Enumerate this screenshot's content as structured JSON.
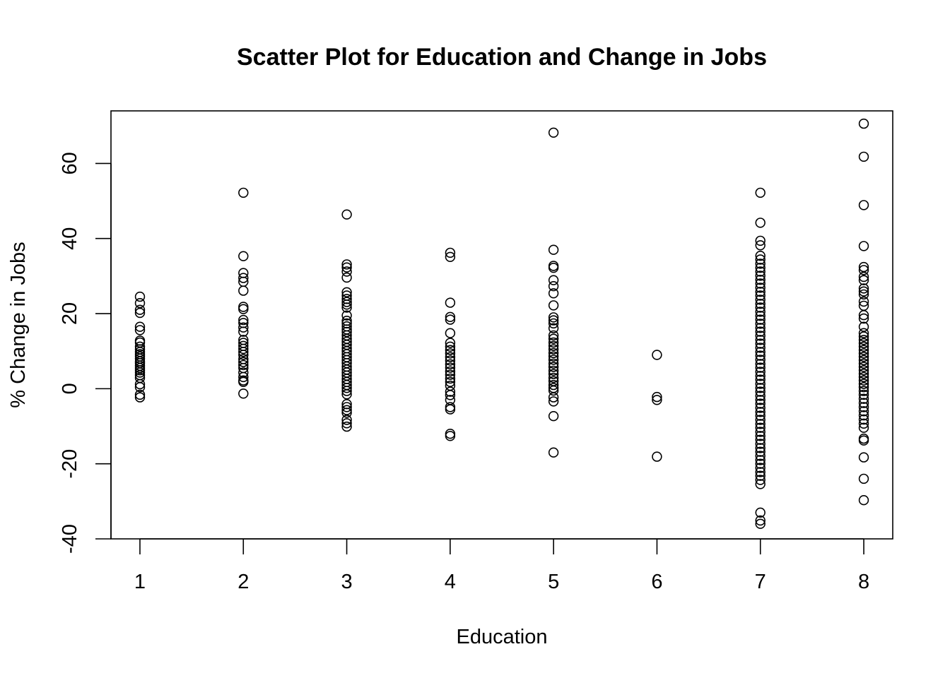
{
  "chart_data": {
    "type": "scatter",
    "title": "Scatter Plot for Education and Change in Jobs",
    "xlabel": "Education",
    "ylabel": "% Change in Jobs",
    "xlim": [
      0.72,
      8.28
    ],
    "ylim": [
      -40,
      74
    ],
    "x_ticks": [
      1,
      2,
      3,
      4,
      5,
      6,
      7,
      8
    ],
    "y_ticks": [
      -40,
      -20,
      0,
      20,
      40,
      60
    ],
    "grid": false,
    "legend": "none",
    "marker": "open-circle",
    "color": "#000000",
    "series": [
      {
        "points": [
          [
            1,
            24.5
          ],
          [
            1,
            22.8
          ],
          [
            1,
            21
          ],
          [
            1,
            20.2
          ],
          [
            1,
            16.5
          ],
          [
            1,
            15.6
          ],
          [
            1,
            12.8
          ],
          [
            1,
            12.3
          ],
          [
            1,
            11.2
          ],
          [
            1,
            10.5
          ],
          [
            1,
            9.8
          ],
          [
            1,
            9.2
          ],
          [
            1,
            8.6
          ],
          [
            1,
            8
          ],
          [
            1,
            7.3
          ],
          [
            1,
            6.8
          ],
          [
            1,
            6.1
          ],
          [
            1,
            5.5
          ],
          [
            1,
            4.9
          ],
          [
            1,
            4.3
          ],
          [
            1,
            3.6
          ],
          [
            1,
            2.9
          ],
          [
            1,
            1.2
          ],
          [
            1,
            0.4
          ],
          [
            1,
            -1.6
          ],
          [
            1,
            -2.3
          ],
          [
            2,
            52.2
          ],
          [
            2,
            35.3
          ],
          [
            2,
            30.8
          ],
          [
            2,
            29.5
          ],
          [
            2,
            28.5
          ],
          [
            2,
            26.1
          ],
          [
            2,
            21.8
          ],
          [
            2,
            21.2
          ],
          [
            2,
            18.3
          ],
          [
            2,
            17.5
          ],
          [
            2,
            16.3
          ],
          [
            2,
            15.2
          ],
          [
            2,
            13
          ],
          [
            2,
            12.2
          ],
          [
            2,
            11.4
          ],
          [
            2,
            10.6
          ],
          [
            2,
            9.8
          ],
          [
            2,
            9
          ],
          [
            2,
            7.9
          ],
          [
            2,
            7.1
          ],
          [
            2,
            6.3
          ],
          [
            2,
            5.5
          ],
          [
            2,
            4.3
          ],
          [
            2,
            3.1
          ],
          [
            2,
            2.2
          ],
          [
            2,
            1.8
          ],
          [
            2,
            -1.3
          ],
          [
            3,
            46.4
          ],
          [
            3,
            33.1
          ],
          [
            3,
            32.3
          ],
          [
            3,
            31.2
          ],
          [
            3,
            29.6
          ],
          [
            3,
            25.7
          ],
          [
            3,
            24.8
          ],
          [
            3,
            23.9
          ],
          [
            3,
            23.1
          ],
          [
            3,
            22.4
          ],
          [
            3,
            21.6
          ],
          [
            3,
            19.5
          ],
          [
            3,
            18.1
          ],
          [
            3,
            17.4
          ],
          [
            3,
            16.6
          ],
          [
            3,
            15.8
          ],
          [
            3,
            15.1
          ],
          [
            3,
            14.2
          ],
          [
            3,
            13.3
          ],
          [
            3,
            12.5
          ],
          [
            3,
            11.7
          ],
          [
            3,
            10.8
          ],
          [
            3,
            10
          ],
          [
            3,
            9.2
          ],
          [
            3,
            8.4
          ],
          [
            3,
            7.6
          ],
          [
            3,
            6.8
          ],
          [
            3,
            5.9
          ],
          [
            3,
            5.1
          ],
          [
            3,
            4.3
          ],
          [
            3,
            3.5
          ],
          [
            3,
            2.6
          ],
          [
            3,
            1.8
          ],
          [
            3,
            1
          ],
          [
            3,
            0.2
          ],
          [
            3,
            -0.6
          ],
          [
            3,
            -1.5
          ],
          [
            3,
            -4.1
          ],
          [
            3,
            -4.9
          ],
          [
            3,
            -5.7
          ],
          [
            3,
            -6.4
          ],
          [
            3,
            -8.3
          ],
          [
            3,
            -9.2
          ],
          [
            3,
            -10.1
          ],
          [
            4,
            36.2
          ],
          [
            4,
            35.1
          ],
          [
            4,
            22.9
          ],
          [
            4,
            19.1
          ],
          [
            4,
            18.4
          ],
          [
            4,
            14.8
          ],
          [
            4,
            12.2
          ],
          [
            4,
            11.2
          ],
          [
            4,
            10.3
          ],
          [
            4,
            9.4
          ],
          [
            4,
            8.4
          ],
          [
            4,
            7.5
          ],
          [
            4,
            6.5
          ],
          [
            4,
            5.6
          ],
          [
            4,
            4.6
          ],
          [
            4,
            3.7
          ],
          [
            4,
            2.7
          ],
          [
            4,
            1.8
          ],
          [
            4,
            0.8
          ],
          [
            4,
            -0.8
          ],
          [
            4,
            -1.7
          ],
          [
            4,
            -3
          ],
          [
            4,
            -4.9
          ],
          [
            4,
            -5.5
          ],
          [
            4,
            -12
          ],
          [
            4,
            -12.6
          ],
          [
            5,
            68.2
          ],
          [
            5,
            37
          ],
          [
            5,
            32.7
          ],
          [
            5,
            32.2
          ],
          [
            5,
            28.9
          ],
          [
            5,
            27.3
          ],
          [
            5,
            25.4
          ],
          [
            5,
            22.2
          ],
          [
            5,
            19
          ],
          [
            5,
            18.2
          ],
          [
            5,
            17.4
          ],
          [
            5,
            16.1
          ],
          [
            5,
            14.2
          ],
          [
            5,
            13.3
          ],
          [
            5,
            12.3
          ],
          [
            5,
            11.4
          ],
          [
            5,
            10.5
          ],
          [
            5,
            9.5
          ],
          [
            5,
            8.6
          ],
          [
            5,
            7.7
          ],
          [
            5,
            6.7
          ],
          [
            5,
            5.8
          ],
          [
            5,
            4.8
          ],
          [
            5,
            3.9
          ],
          [
            5,
            2.9
          ],
          [
            5,
            2
          ],
          [
            5,
            1
          ],
          [
            5,
            0.2
          ],
          [
            5,
            -0.5
          ],
          [
            5,
            -2.3
          ],
          [
            5,
            -3.4
          ],
          [
            5,
            -7.3
          ],
          [
            5,
            -17
          ],
          [
            6,
            9
          ],
          [
            6,
            -2.2
          ],
          [
            6,
            -3
          ],
          [
            6,
            -18.1
          ],
          [
            7,
            52.2
          ],
          [
            7,
            44.2
          ],
          [
            7,
            39.4
          ],
          [
            7,
            38.2
          ],
          [
            7,
            35.4
          ],
          [
            7,
            34.4
          ],
          [
            7,
            33.3
          ],
          [
            7,
            32.2
          ],
          [
            7,
            31.2
          ],
          [
            7,
            30.1
          ],
          [
            7,
            29
          ],
          [
            7,
            28
          ],
          [
            7,
            26.9
          ],
          [
            7,
            25.8
          ],
          [
            7,
            24.8
          ],
          [
            7,
            23.7
          ],
          [
            7,
            22.6
          ],
          [
            7,
            21.6
          ],
          [
            7,
            20.5
          ],
          [
            7,
            19.4
          ],
          [
            7,
            18.4
          ],
          [
            7,
            17.3
          ],
          [
            7,
            16.2
          ],
          [
            7,
            15.2
          ],
          [
            7,
            14.1
          ],
          [
            7,
            13
          ],
          [
            7,
            12
          ],
          [
            7,
            10.9
          ],
          [
            7,
            9.8
          ],
          [
            7,
            8.8
          ],
          [
            7,
            7.7
          ],
          [
            7,
            6.6
          ],
          [
            7,
            5.6
          ],
          [
            7,
            4.5
          ],
          [
            7,
            3.4
          ],
          [
            7,
            2.4
          ],
          [
            7,
            1.3
          ],
          [
            7,
            0.2
          ],
          [
            7,
            -0.8
          ],
          [
            7,
            -1.9
          ],
          [
            7,
            -3
          ],
          [
            7,
            -4
          ],
          [
            7,
            -5.1
          ],
          [
            7,
            -6.2
          ],
          [
            7,
            -7.2
          ],
          [
            7,
            -8.3
          ],
          [
            7,
            -9.4
          ],
          [
            7,
            -10.4
          ],
          [
            7,
            -11.5
          ],
          [
            7,
            -12.6
          ],
          [
            7,
            -13.6
          ],
          [
            7,
            -14.7
          ],
          [
            7,
            -15.8
          ],
          [
            7,
            -16.8
          ],
          [
            7,
            -17.9
          ],
          [
            7,
            -19
          ],
          [
            7,
            -20
          ],
          [
            7,
            -21.1
          ],
          [
            7,
            -22.2
          ],
          [
            7,
            -23.2
          ],
          [
            7,
            -24.3
          ],
          [
            7,
            -25.4
          ],
          [
            7,
            -33
          ],
          [
            7,
            -35.1
          ],
          [
            7,
            -36
          ],
          [
            8,
            70.6
          ],
          [
            8,
            61.8
          ],
          [
            8,
            48.9
          ],
          [
            8,
            38
          ],
          [
            8,
            32.4
          ],
          [
            8,
            31.6
          ],
          [
            8,
            29.8
          ],
          [
            8,
            28.9
          ],
          [
            8,
            26.7
          ],
          [
            8,
            25.9
          ],
          [
            8,
            25.1
          ],
          [
            8,
            23.2
          ],
          [
            8,
            22.1
          ],
          [
            8,
            19.6
          ],
          [
            8,
            18.7
          ],
          [
            8,
            16.5
          ],
          [
            8,
            14.8
          ],
          [
            8,
            13.9
          ],
          [
            8,
            13
          ],
          [
            8,
            12.1
          ],
          [
            8,
            11.2
          ],
          [
            8,
            10.3
          ],
          [
            8,
            9.4
          ],
          [
            8,
            8.5
          ],
          [
            8,
            7.6
          ],
          [
            8,
            6.7
          ],
          [
            8,
            5.8
          ],
          [
            8,
            4.9
          ],
          [
            8,
            4
          ],
          [
            8,
            3.1
          ],
          [
            8,
            2.2
          ],
          [
            8,
            1.3
          ],
          [
            8,
            0.4
          ],
          [
            8,
            -0.6
          ],
          [
            8,
            -1.6
          ],
          [
            8,
            -2.7
          ],
          [
            8,
            -3.8
          ],
          [
            8,
            -4.9
          ],
          [
            8,
            -6
          ],
          [
            8,
            -7.1
          ],
          [
            8,
            -8.2
          ],
          [
            8,
            -9.3
          ],
          [
            8,
            -10.4
          ],
          [
            8,
            -13.3
          ],
          [
            8,
            -13.8
          ],
          [
            8,
            -18.3
          ],
          [
            8,
            -24
          ],
          [
            8,
            -29.7
          ]
        ]
      }
    ]
  }
}
